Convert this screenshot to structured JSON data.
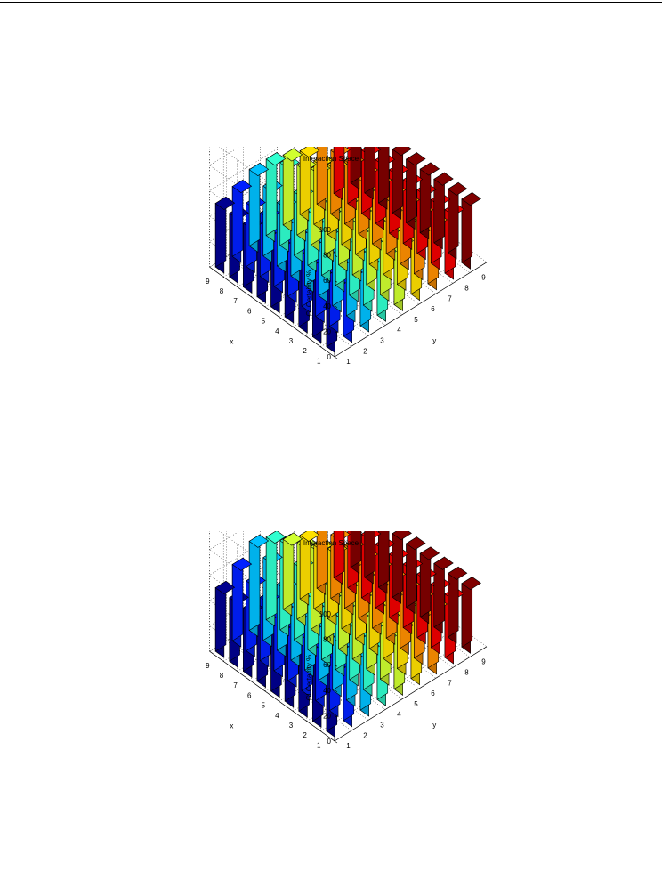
{
  "page": {
    "background": "#ffffff"
  },
  "chart_data": [
    {
      "type": "bar3d",
      "title": "Interaction Space",
      "xlabel": "x",
      "ylabel": "y",
      "zlabel": "CI Certainty %",
      "x_ticks": [
        "1",
        "2",
        "3",
        "4",
        "5",
        "6",
        "7",
        "8",
        "9"
      ],
      "y_ticks": [
        "1",
        "2",
        "3",
        "4",
        "5",
        "6",
        "7",
        "8",
        "9"
      ],
      "z_ticks": [
        "0",
        "20",
        "40",
        "60",
        "80",
        "100"
      ],
      "zlim": [
        0,
        100
      ],
      "grid": true,
      "colormap": [
        "#00008f",
        "#0020ff",
        "#0070ff",
        "#00c0ff",
        "#30ffd0",
        "#80ff80",
        "#d0ff30",
        "#ffe000",
        "#ff9000",
        "#ff4000",
        "#f00000",
        "#800000"
      ],
      "values": [
        [
          50,
          50,
          50,
          50,
          50,
          50,
          50,
          50,
          50
        ],
        [
          50,
          50,
          50,
          50,
          50,
          50,
          50,
          50,
          50
        ],
        [
          50,
          50,
          50,
          50,
          50,
          50,
          50,
          50,
          50
        ],
        [
          50,
          50,
          50,
          50,
          50,
          50,
          50,
          50,
          50
        ],
        [
          50,
          50,
          50,
          50,
          50,
          50,
          50,
          50,
          50
        ],
        [
          50,
          50,
          50,
          50,
          55,
          50,
          50,
          50,
          50
        ],
        [
          50,
          50,
          50,
          50,
          60,
          55,
          50,
          50,
          50
        ],
        [
          50,
          50,
          55,
          65,
          55,
          50,
          50,
          50,
          50
        ],
        [
          50,
          55,
          60,
          60,
          55,
          50,
          50,
          50,
          50
        ]
      ]
    },
    {
      "type": "bar3d",
      "title": "Interaction Space",
      "xlabel": "x",
      "ylabel": "y",
      "zlabel": "CI Certainty %",
      "x_ticks": [
        "1",
        "2",
        "3",
        "4",
        "5",
        "6",
        "7",
        "8",
        "9"
      ],
      "y_ticks": [
        "1",
        "2",
        "3",
        "4",
        "5",
        "6",
        "7",
        "8",
        "9"
      ],
      "z_ticks": [
        "0",
        "20",
        "40",
        "60",
        "80",
        "100"
      ],
      "zlim": [
        0,
        100
      ],
      "grid": true,
      "colormap": [
        "#00008f",
        "#0020ff",
        "#0070ff",
        "#00c0ff",
        "#30ffd0",
        "#80ff80",
        "#d0ff30",
        "#ffe000",
        "#ff9000",
        "#ff4000",
        "#f00000",
        "#800000"
      ],
      "values": [
        [
          50,
          50,
          50,
          50,
          50,
          50,
          50,
          50,
          50
        ],
        [
          50,
          50,
          50,
          50,
          50,
          50,
          50,
          50,
          50
        ],
        [
          50,
          50,
          50,
          50,
          50,
          50,
          50,
          50,
          50
        ],
        [
          50,
          50,
          50,
          50,
          50,
          50,
          50,
          50,
          50
        ],
        [
          50,
          50,
          50,
          50,
          50,
          50,
          50,
          50,
          50
        ],
        [
          50,
          50,
          50,
          52,
          55,
          50,
          50,
          50,
          50
        ],
        [
          50,
          50,
          52,
          60,
          65,
          55,
          50,
          50,
          50
        ],
        [
          50,
          55,
          65,
          70,
          60,
          50,
          50,
          50,
          50
        ],
        [
          50,
          60,
          70,
          65,
          55,
          50,
          50,
          50,
          50
        ]
      ]
    }
  ]
}
